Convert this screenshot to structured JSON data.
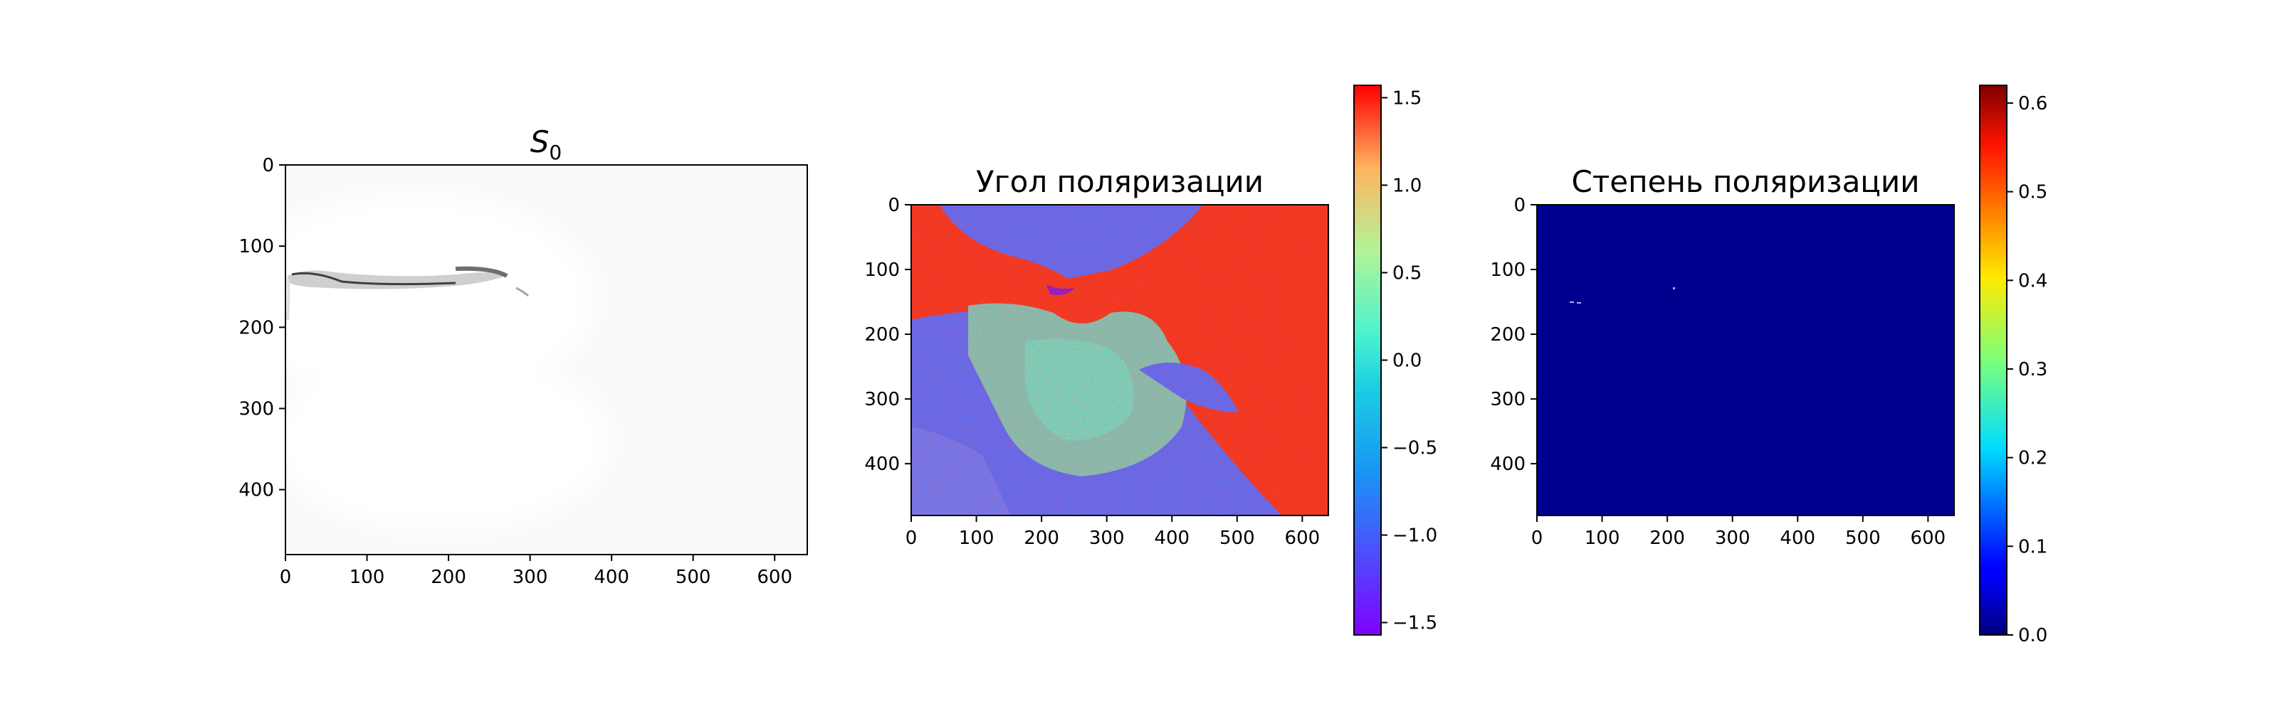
{
  "chart_data": [
    {
      "type": "heatmap",
      "title": "S",
      "title_subscript": "0",
      "colormap": "gray",
      "background_color": "#f9f9f9",
      "xlim": [
        0,
        640
      ],
      "ylim": [
        480,
        0
      ],
      "xticks": [
        0,
        100,
        200,
        300,
        400,
        500,
        600
      ],
      "yticks": [
        0,
        100,
        200,
        300,
        400
      ],
      "colorbar": null
    },
    {
      "type": "heatmap",
      "title": "Угол поляризации",
      "colormap": "rainbow",
      "xlim": [
        0,
        640
      ],
      "ylim": [
        480,
        0
      ],
      "xticks": [
        0,
        100,
        200,
        300,
        400,
        500,
        600
      ],
      "yticks": [
        0,
        100,
        200,
        300,
        400
      ],
      "colorbar": {
        "min": -1.5708,
        "max": 1.5708,
        "ticks": [
          -1.5,
          -1.0,
          -0.5,
          0.0,
          0.5,
          1.0,
          1.5
        ],
        "tick_labels": [
          "−1.5",
          "−1.0",
          "−0.5",
          "0.0",
          "0.5",
          "1.0",
          "1.5"
        ]
      }
    },
    {
      "type": "heatmap",
      "title": "Степень поляризации",
      "colormap": "jet",
      "background_color": "#00008f",
      "xlim": [
        0,
        640
      ],
      "ylim": [
        480,
        0
      ],
      "xticks": [
        0,
        100,
        200,
        300,
        400,
        500,
        600
      ],
      "yticks": [
        0,
        100,
        200,
        300,
        400
      ],
      "colorbar": {
        "min": 0.0,
        "max": 0.62,
        "ticks": [
          0.0,
          0.1,
          0.2,
          0.3,
          0.4,
          0.5,
          0.6
        ],
        "tick_labels": [
          "0.0",
          "0.1",
          "0.2",
          "0.3",
          "0.4",
          "0.5",
          "0.6"
        ]
      }
    }
  ]
}
